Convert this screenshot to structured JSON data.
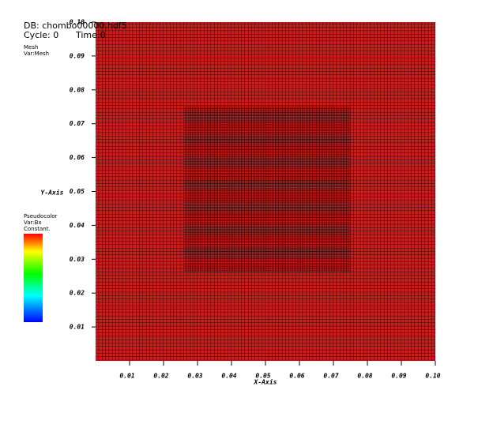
{
  "chart_data": {
    "type": "mesh",
    "header": {
      "db": "DB: chombo00000.hdf5",
      "cycle": "Cycle: 0",
      "time": "Time:0"
    },
    "plots": [
      {
        "name": "Mesh",
        "var": "Var:Mesh"
      },
      {
        "name": "Pseudocolor",
        "var": "Var:Bx",
        "note": "Constant."
      }
    ],
    "x_label": "X-Axis",
    "y_label": "Y-Axis",
    "xlim": [
      0,
      0.1
    ],
    "ylim": [
      0,
      0.1
    ],
    "xticks": [
      0.01,
      0.02,
      0.03,
      0.04,
      0.05,
      0.06,
      0.07,
      0.08,
      0.09,
      {
        "value": 0.1,
        "label": "0.10"
      }
    ],
    "yticks": [
      0.01,
      0.02,
      0.03,
      0.04,
      0.05,
      0.06,
      0.07,
      0.08,
      0.09,
      {
        "value": 0.1,
        "label": "0.10"
      }
    ],
    "color": "#cc1d1d",
    "refined_region": {
      "x": [
        0.026,
        0.075
      ],
      "y": [
        0.026,
        0.075
      ]
    }
  }
}
